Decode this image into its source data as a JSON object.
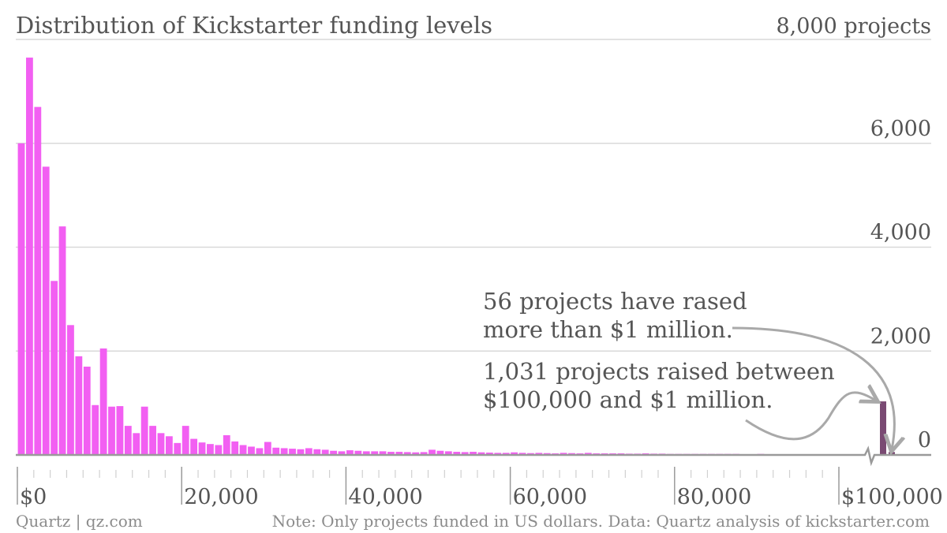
{
  "chart_data": {
    "type": "bar",
    "title": "Distribution of Kickstarter funding levels",
    "y_top_label": "8,000 projects",
    "ylim": [
      0,
      8000
    ],
    "y_ticks": [
      2000,
      4000,
      6000
    ],
    "y_tick_labels": [
      "2,000",
      "4,000",
      "6,000"
    ],
    "y_zero_label": "0",
    "x_ticks": [
      0,
      20000,
      40000,
      60000,
      80000,
      100000
    ],
    "x_tick_labels": [
      "$0",
      "20,000",
      "40,000",
      "60,000",
      "80,000",
      "$100,000"
    ],
    "bin_width": 1000,
    "values": [
      6000,
      7650,
      6700,
      5550,
      3350,
      4400,
      2500,
      1900,
      1700,
      960,
      2050,
      930,
      940,
      560,
      420,
      930,
      560,
      420,
      360,
      230,
      560,
      310,
      240,
      210,
      190,
      380,
      260,
      190,
      160,
      130,
      250,
      140,
      130,
      120,
      110,
      130,
      110,
      100,
      80,
      70,
      90,
      80,
      70,
      70,
      70,
      60,
      60,
      55,
      50,
      55,
      100,
      80,
      70,
      60,
      55,
      60,
      50,
      45,
      40,
      40,
      50,
      40,
      35,
      40,
      35,
      30,
      40,
      35,
      30,
      40,
      30,
      30,
      30,
      30,
      25,
      25,
      30,
      25,
      25,
      20,
      20,
      20,
      20,
      20,
      20,
      20,
      20,
      20,
      15,
      15,
      20,
      15,
      15,
      15,
      15,
      15,
      15,
      15,
      15,
      15
    ],
    "extra_bars": [
      {
        "label": "$100,000 and $1 million",
        "value": 1031
      },
      {
        "label": "more than $1 million",
        "value": 56
      }
    ],
    "annotations": {
      "million_line1": "56 projects have rased",
      "million_line2": "more than $1 million.",
      "range_line1": "1,031 projects raised between",
      "range_line2": "$100,000 and $1 million."
    },
    "colors": {
      "main_bars": "#f25ff2",
      "highlight_bars": "#7a4a73",
      "arrow": "#a9a9a9",
      "grid": "#d9d9d9",
      "axis": "#9a9a9a"
    }
  },
  "source": "Quartz | qz.com",
  "note": "Note: Only projects funded in US dollars. Data: Quartz analysis of kickstarter.com"
}
